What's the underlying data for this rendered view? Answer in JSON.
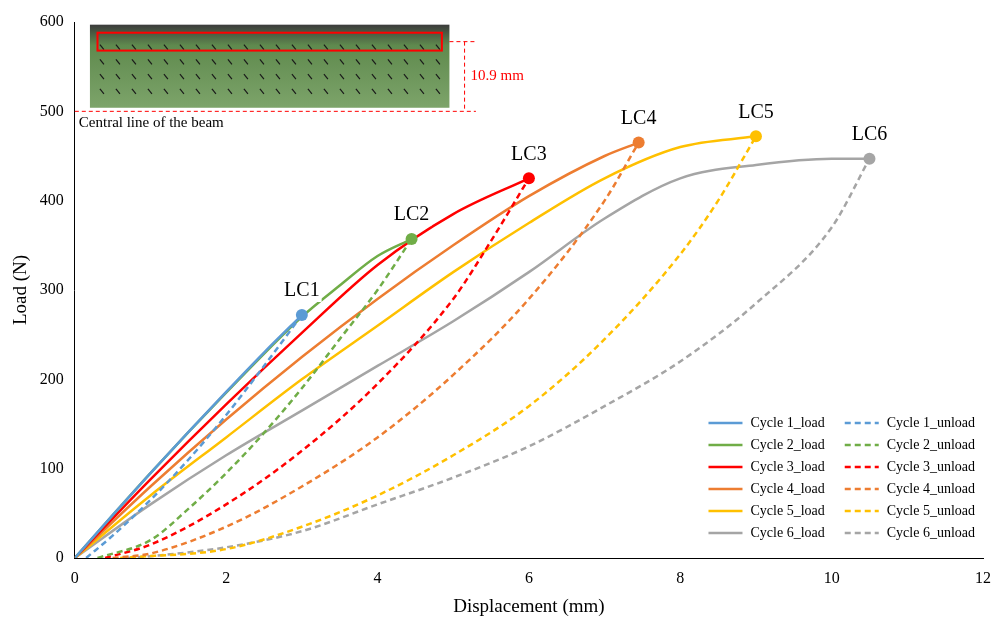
{
  "chart_data": {
    "type": "line",
    "x_label": "Displacement (mm)",
    "y_label": "Load (N)",
    "xlim": [
      0,
      12
    ],
    "xticks": [
      0,
      2,
      4,
      6,
      8,
      10,
      12
    ],
    "ylim": [
      0,
      600
    ],
    "yticks": [
      0,
      100,
      200,
      300,
      400,
      500,
      600
    ],
    "grid": false,
    "legend": "lower right",
    "series": [
      {
        "name": "Cycle 1_load",
        "color": "#5b9bd5",
        "line_style": "solid",
        "x": [
          0,
          0.5,
          1,
          1.5,
          2,
          2.5,
          3.0
        ],
        "values": [
          0,
          48,
          95,
          141,
          186,
          230,
          272
        ]
      },
      {
        "name": "Cycle 1_unload",
        "color": "#5b9bd5",
        "line_style": "dashed",
        "x": [
          0.15,
          0.5,
          1,
          1.5,
          2,
          2.5,
          3.0
        ],
        "values": [
          0,
          25,
          65,
          110,
          160,
          215,
          272
        ]
      },
      {
        "name": "Cycle 2_load",
        "color": "#70ad47",
        "line_style": "solid",
        "x": [
          0,
          1,
          2,
          3,
          3.5,
          4,
          4.45
        ],
        "values": [
          0,
          95,
          185,
          270,
          305,
          338,
          357
        ]
      },
      {
        "name": "Cycle 2_unload",
        "color": "#70ad47",
        "line_style": "dashed",
        "x": [
          0.3,
          1,
          1.5,
          2,
          2.5,
          3,
          3.5,
          4,
          4.45
        ],
        "values": [
          0,
          20,
          55,
          95,
          140,
          190,
          245,
          300,
          357
        ]
      },
      {
        "name": "Cycle 3_load",
        "color": "#ff0000",
        "line_style": "solid",
        "x": [
          0,
          1,
          2,
          3,
          4,
          5,
          6
        ],
        "values": [
          0,
          88,
          172,
          252,
          328,
          385,
          425
        ]
      },
      {
        "name": "Cycle 3_unload",
        "color": "#ff0000",
        "line_style": "dashed",
        "x": [
          0.4,
          1,
          2,
          3,
          4,
          5,
          5.5,
          6
        ],
        "values": [
          0,
          15,
          60,
          120,
          195,
          290,
          355,
          425
        ]
      },
      {
        "name": "Cycle 4_load",
        "color": "#ed7d31",
        "line_style": "solid",
        "x": [
          0,
          1,
          2,
          3,
          4,
          5,
          6,
          7,
          7.45
        ],
        "values": [
          0,
          80,
          155,
          225,
          290,
          350,
          405,
          450,
          465
        ]
      },
      {
        "name": "Cycle 4_unload",
        "color": "#ed7d31",
        "line_style": "dashed",
        "x": [
          0.5,
          1,
          2,
          3,
          4,
          5,
          6,
          7,
          7.45
        ],
        "values": [
          0,
          5,
          35,
          80,
          135,
          205,
          290,
          400,
          465
        ]
      },
      {
        "name": "Cycle 5_load",
        "color": "#ffc000",
        "line_style": "solid",
        "x": [
          0,
          1,
          2,
          3,
          4,
          5,
          6,
          7,
          8,
          9
        ],
        "values": [
          0,
          70,
          135,
          200,
          260,
          320,
          375,
          425,
          460,
          472
        ]
      },
      {
        "name": "Cycle 5_unload",
        "color": "#ffc000",
        "line_style": "dashed",
        "x": [
          0.6,
          2,
          3,
          4,
          5,
          6,
          7,
          8,
          8.5,
          9
        ],
        "values": [
          0,
          10,
          35,
          70,
          115,
          170,
          245,
          340,
          400,
          472
        ]
      },
      {
        "name": "Cycle 6_load",
        "color": "#a5a5a5",
        "line_style": "solid",
        "x": [
          0,
          1,
          2,
          3,
          4,
          5,
          6,
          7,
          8,
          9,
          10,
          10.5
        ],
        "values": [
          0,
          60,
          115,
          165,
          215,
          265,
          320,
          380,
          425,
          440,
          447,
          447
        ]
      },
      {
        "name": "Cycle 6_unload",
        "color": "#a5a5a5",
        "line_style": "dashed",
        "x": [
          0.7,
          1,
          2,
          3,
          4,
          5,
          6,
          7,
          8,
          9,
          10,
          10.5
        ],
        "values": [
          0,
          2,
          12,
          30,
          60,
          90,
          125,
          170,
          220,
          285,
          370,
          447
        ]
      }
    ],
    "annotations": [
      {
        "text": "LC1",
        "x": 3.0,
        "y": 272,
        "color": "#5b9bd5"
      },
      {
        "text": "LC2",
        "x": 4.45,
        "y": 357,
        "color": "#70ad47"
      },
      {
        "text": "LC3",
        "x": 6.0,
        "y": 425,
        "color": "#ff0000"
      },
      {
        "text": "LC4",
        "x": 7.45,
        "y": 465,
        "color": "#ed7d31"
      },
      {
        "text": "LC5",
        "x": 9.0,
        "y": 472,
        "color": "#ffc000"
      },
      {
        "text": "LC6",
        "x": 10.5,
        "y": 447,
        "color": "#a5a5a5"
      }
    ],
    "inset_texts": [
      "Central line of the beam",
      "10.9 mm"
    ]
  }
}
